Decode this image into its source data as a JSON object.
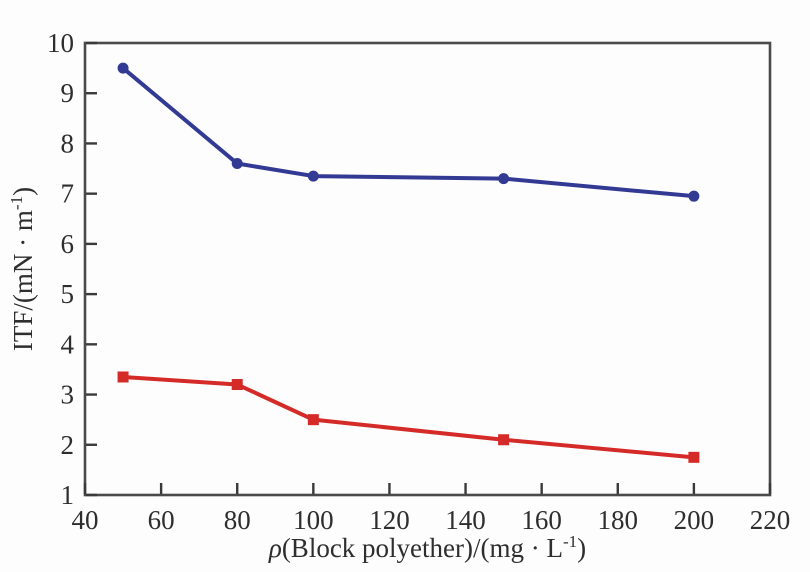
{
  "chart_data": {
    "type": "line",
    "title": "",
    "xlabel": "ρ(Block polyether)/(mg · L⁻¹)",
    "ylabel": "ITF/(mN · m⁻¹)",
    "xlabel_parts": [
      {
        "text": "ρ",
        "style": "italic"
      },
      {
        "text": "(Block polyether)/(mg · L",
        "style": "normal"
      },
      {
        "text": "-1",
        "style": "sup"
      },
      {
        "text": ")",
        "style": "normal"
      }
    ],
    "ylabel_parts": [
      {
        "text": "ITF/(mN · m",
        "style": "normal"
      },
      {
        "text": "-1",
        "style": "sup"
      },
      {
        "text": ")",
        "style": "normal"
      }
    ],
    "xlim": [
      40,
      220
    ],
    "ylim": [
      1,
      10
    ],
    "x_ticks": [
      40,
      60,
      80,
      100,
      120,
      140,
      160,
      180,
      200,
      220
    ],
    "y_ticks": [
      1,
      2,
      3,
      4,
      5,
      6,
      7,
      8,
      9,
      10
    ],
    "grid": false,
    "legend": "none",
    "series": [
      {
        "name": "upper-series",
        "marker": "circle",
        "color": "#333a93",
        "x": [
          50,
          80,
          100,
          150,
          200
        ],
        "y": [
          9.5,
          7.6,
          7.35,
          7.3,
          6.95
        ]
      },
      {
        "name": "lower-series",
        "marker": "square",
        "color": "#d42b28",
        "x": [
          50,
          80,
          100,
          150,
          200
        ],
        "y": [
          3.35,
          3.2,
          2.5,
          2.1,
          1.75
        ]
      }
    ],
    "axis_color": "#4a4a4a",
    "tick_color": "#3a3a3a",
    "text_color": "#2e2e2e"
  }
}
